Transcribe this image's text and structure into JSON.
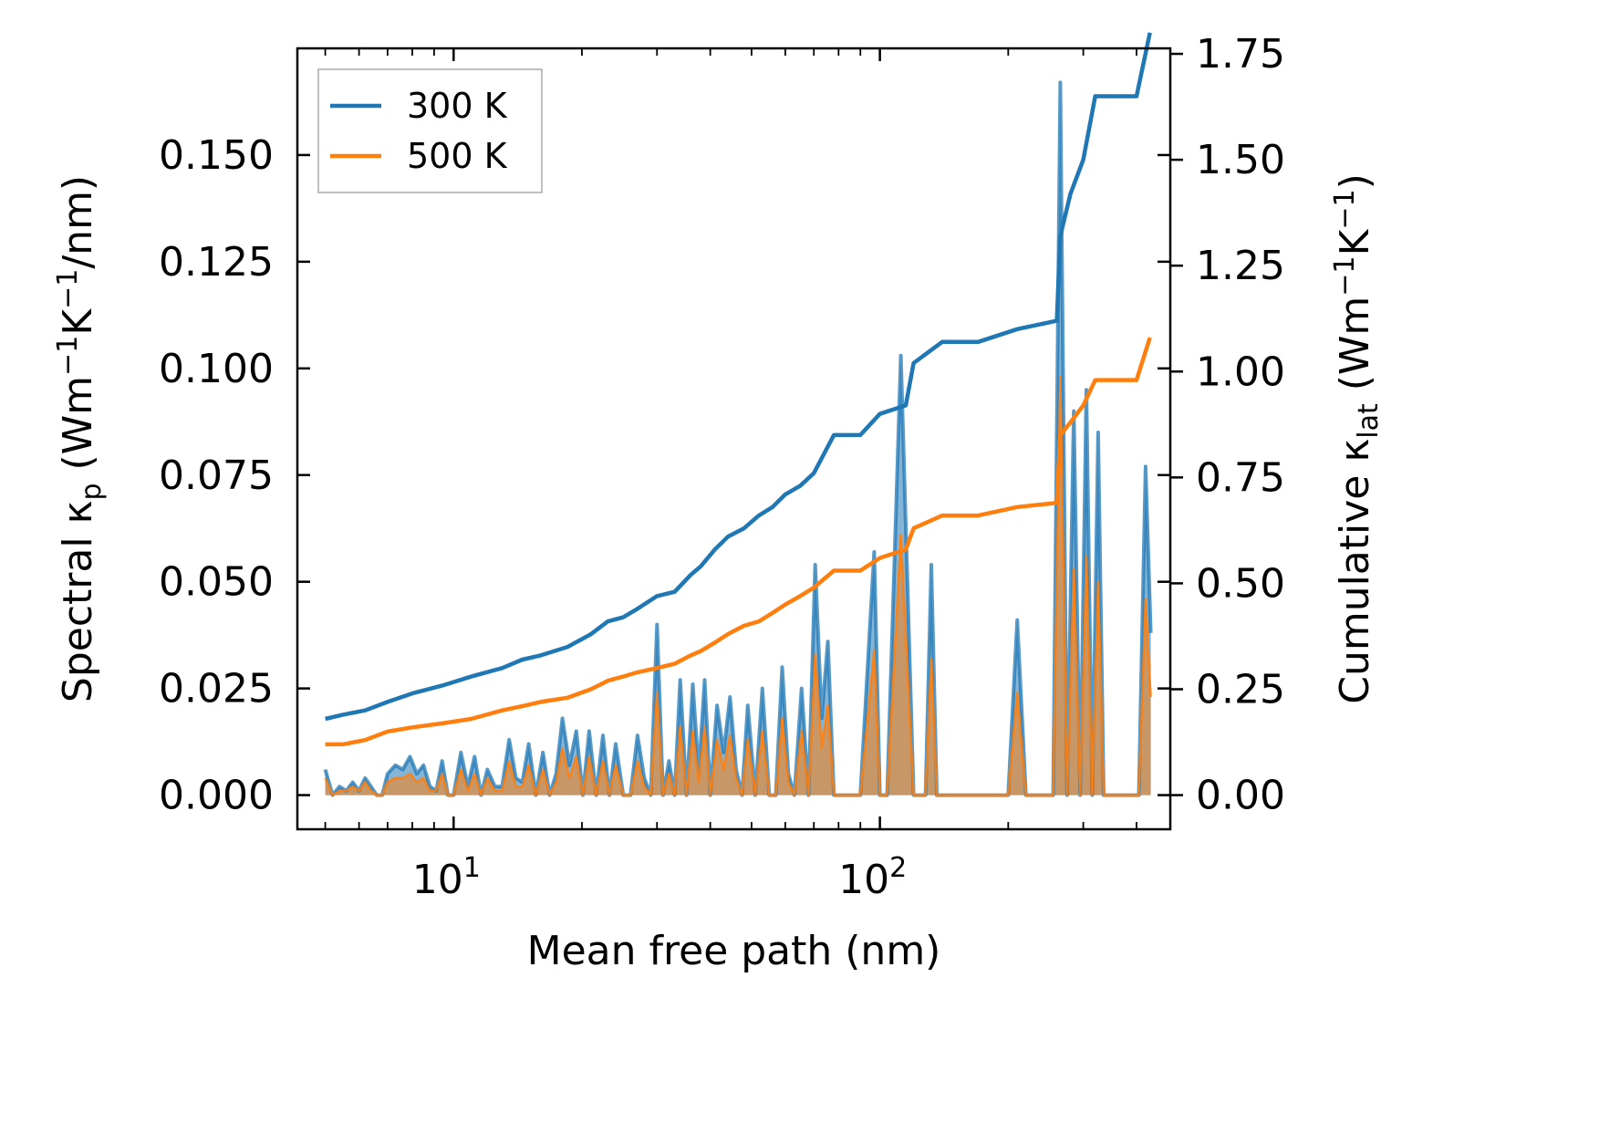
{
  "chart_data": {
    "type": "line",
    "xscale": "log",
    "xlabel": "Mean free path (nm)",
    "ylabel_left_parts": [
      "Spectral κ",
      "p",
      " (Wm",
      "−1",
      "K",
      "−1",
      "/nm)"
    ],
    "ylabel_right_parts": [
      "Cumulative κ",
      "lat",
      " (Wm",
      "−1",
      "K",
      "−1",
      ")"
    ],
    "xlim": [
      4.3,
      480
    ],
    "ylim_left": [
      -0.008,
      0.175
    ],
    "ylim_right": [
      -0.0806,
      1.763
    ],
    "x_ticks": [
      {
        "value": 10,
        "base": "10",
        "exp": "1"
      },
      {
        "value": 100,
        "base": "10",
        "exp": "2"
      }
    ],
    "y_left_ticks": [
      "0.000",
      "0.025",
      "0.050",
      "0.075",
      "0.100",
      "0.125",
      "0.150"
    ],
    "y_right_ticks": [
      "0.00",
      "0.25",
      "0.50",
      "0.75",
      "1.00",
      "1.25",
      "1.50",
      "1.75"
    ],
    "legend": [
      {
        "label": "300 K",
        "color": "#1f77b4"
      },
      {
        "label": "500 K",
        "color": "#ff7f0e"
      }
    ],
    "series": [
      {
        "name": "300 K cumulative",
        "axis": "right",
        "color": "#1f77b4",
        "x": [
          5,
          5.5,
          6.2,
          7,
          8,
          9.5,
          11,
          13,
          14.5,
          16,
          18.5,
          21,
          23,
          25,
          27,
          30,
          33,
          36,
          38,
          41,
          44,
          48,
          52,
          56,
          60,
          65,
          70,
          78,
          90,
          100,
          115,
          120,
          140,
          170,
          210,
          260,
          265,
          280,
          300,
          320,
          350,
          400,
          430
        ],
        "y": [
          0.18,
          0.19,
          0.2,
          0.22,
          0.24,
          0.26,
          0.28,
          0.3,
          0.32,
          0.33,
          0.35,
          0.38,
          0.41,
          0.42,
          0.44,
          0.47,
          0.48,
          0.52,
          0.54,
          0.58,
          0.61,
          0.63,
          0.66,
          0.68,
          0.71,
          0.73,
          0.76,
          0.85,
          0.85,
          0.9,
          0.92,
          1.02,
          1.07,
          1.07,
          1.1,
          1.12,
          1.32,
          1.42,
          1.5,
          1.65,
          1.65,
          1.65,
          1.8
        ]
      },
      {
        "name": "500 K cumulative",
        "axis": "right",
        "color": "#ff7f0e",
        "x": [
          5,
          5.5,
          6.2,
          7,
          8,
          9.5,
          11,
          13,
          14.5,
          16,
          18.5,
          21,
          23,
          25,
          27,
          30,
          33,
          36,
          38,
          41,
          44,
          48,
          52,
          56,
          60,
          65,
          70,
          78,
          90,
          100,
          115,
          120,
          140,
          170,
          210,
          260,
          265,
          280,
          300,
          320,
          350,
          400,
          430
        ],
        "y": [
          0.12,
          0.12,
          0.13,
          0.15,
          0.16,
          0.17,
          0.18,
          0.2,
          0.21,
          0.22,
          0.23,
          0.25,
          0.27,
          0.28,
          0.29,
          0.3,
          0.31,
          0.33,
          0.34,
          0.36,
          0.38,
          0.4,
          0.41,
          0.43,
          0.45,
          0.47,
          0.49,
          0.53,
          0.53,
          0.56,
          0.58,
          0.63,
          0.66,
          0.66,
          0.68,
          0.69,
          0.85,
          0.88,
          0.92,
          0.98,
          0.98,
          0.98,
          1.08
        ]
      },
      {
        "name": "300 K spectral",
        "axis": "left",
        "color": "#1f77b4",
        "x": [
          5,
          5.2,
          5.4,
          5.6,
          5.8,
          6.0,
          6.2,
          6.4,
          6.6,
          6.8,
          7.0,
          7.3,
          7.6,
          7.9,
          8.2,
          8.5,
          8.8,
          9.1,
          9.4,
          9.7,
          10.0,
          10.4,
          10.8,
          11.2,
          11.6,
          12.0,
          12.5,
          13.0,
          13.5,
          14.0,
          14.5,
          15.0,
          15.6,
          16.2,
          16.8,
          17.4,
          18.0,
          18.7,
          19.4,
          20.1,
          20.8,
          21.6,
          22.4,
          23.2,
          24.0,
          25.0,
          26.0,
          27.0,
          28.0,
          29.0,
          30.0,
          31.0,
          32.0,
          33.0,
          34.0,
          35.2,
          36.4,
          37.6,
          38.8,
          40.0,
          41.5,
          43.0,
          44.5,
          46.0,
          47.5,
          49.0,
          51.0,
          53.0,
          55.0,
          57.0,
          59.0,
          61.0,
          63.0,
          65.5,
          68.0,
          70.5,
          73.0,
          75.5,
          78.0,
          80.5,
          83.0,
          90.0,
          97.0,
          100.0,
          104.0,
          112.0,
          120.0,
          124.0,
          128.0,
          132.0,
          136.0,
          140.0,
          200.0,
          210.0,
          220.0,
          255.0,
          265.0,
          275.0,
          285.0,
          295.0,
          305.0,
          315.0,
          325.0,
          335.0,
          390.0,
          405.0,
          420.0,
          432.0
        ],
        "y": [
          0.006,
          0.0,
          0.002,
          0.001,
          0.003,
          0.001,
          0.004,
          0.002,
          0.0,
          0.0,
          0.005,
          0.007,
          0.006,
          0.009,
          0.005,
          0.007,
          0.002,
          0.001,
          0.008,
          0.0,
          0.0,
          0.01,
          0.002,
          0.009,
          0.0,
          0.006,
          0.002,
          0.002,
          0.013,
          0.004,
          0.003,
          0.012,
          0.0,
          0.01,
          0.0,
          0.005,
          0.018,
          0.007,
          0.015,
          0.0,
          0.015,
          0.0,
          0.014,
          0.0,
          0.012,
          0.0,
          0.0,
          0.014,
          0.004,
          0.0,
          0.04,
          0.0,
          0.008,
          0.0,
          0.027,
          0.0,
          0.026,
          0.005,
          0.027,
          0.0,
          0.021,
          0.01,
          0.023,
          0.006,
          0.0,
          0.021,
          0.0,
          0.025,
          0.0,
          0.0,
          0.03,
          0.005,
          0.0,
          0.025,
          0.0,
          0.054,
          0.018,
          0.036,
          0.0,
          0.0,
          0.0,
          0.0,
          0.057,
          0.0,
          0.0,
          0.103,
          0.0,
          0.0,
          0.0,
          0.054,
          0.0,
          0.0,
          0.0,
          0.041,
          0.0,
          0.0,
          0.167,
          0.0,
          0.09,
          0.0,
          0.095,
          0.0,
          0.085,
          0.0,
          0.0,
          0.0,
          0.077,
          0.038
        ]
      },
      {
        "name": "500 K spectral",
        "axis": "left",
        "color": "#ff7f0e",
        "x": [
          5,
          5.2,
          5.4,
          5.6,
          5.8,
          6.0,
          6.2,
          6.4,
          6.6,
          6.8,
          7.0,
          7.3,
          7.6,
          7.9,
          8.2,
          8.5,
          8.8,
          9.1,
          9.4,
          9.7,
          10.0,
          10.4,
          10.8,
          11.2,
          11.6,
          12.0,
          12.5,
          13.0,
          13.5,
          14.0,
          14.5,
          15.0,
          15.6,
          16.2,
          16.8,
          17.4,
          18.0,
          18.7,
          19.4,
          20.1,
          20.8,
          21.6,
          22.4,
          23.2,
          24.0,
          25.0,
          26.0,
          27.0,
          28.0,
          29.0,
          30.0,
          31.0,
          32.0,
          33.0,
          34.0,
          35.2,
          36.4,
          37.6,
          38.8,
          40.0,
          41.5,
          43.0,
          44.5,
          46.0,
          47.5,
          49.0,
          51.0,
          53.0,
          55.0,
          57.0,
          59.0,
          61.0,
          63.0,
          65.5,
          68.0,
          70.5,
          73.0,
          75.5,
          78.0,
          80.5,
          83.0,
          90.0,
          97.0,
          100.0,
          104.0,
          112.0,
          120.0,
          124.0,
          128.0,
          132.0,
          136.0,
          140.0,
          200.0,
          210.0,
          220.0,
          255.0,
          265.0,
          275.0,
          285.0,
          295.0,
          305.0,
          315.0,
          325.0,
          335.0,
          390.0,
          405.0,
          420.0,
          432.0
        ],
        "y": [
          0.004,
          0.0,
          0.001,
          0.001,
          0.002,
          0.001,
          0.003,
          0.001,
          0.0,
          0.0,
          0.003,
          0.004,
          0.004,
          0.005,
          0.003,
          0.004,
          0.001,
          0.001,
          0.005,
          0.0,
          0.0,
          0.006,
          0.001,
          0.005,
          0.0,
          0.004,
          0.001,
          0.001,
          0.008,
          0.002,
          0.002,
          0.007,
          0.0,
          0.006,
          0.0,
          0.003,
          0.011,
          0.004,
          0.009,
          0.0,
          0.009,
          0.0,
          0.008,
          0.0,
          0.007,
          0.0,
          0.0,
          0.008,
          0.002,
          0.0,
          0.024,
          0.0,
          0.005,
          0.0,
          0.016,
          0.0,
          0.015,
          0.003,
          0.016,
          0.0,
          0.013,
          0.006,
          0.014,
          0.004,
          0.0,
          0.013,
          0.0,
          0.015,
          0.0,
          0.0,
          0.018,
          0.003,
          0.0,
          0.015,
          0.0,
          0.033,
          0.011,
          0.021,
          0.0,
          0.0,
          0.0,
          0.0,
          0.034,
          0.0,
          0.0,
          0.061,
          0.0,
          0.0,
          0.0,
          0.032,
          0.0,
          0.0,
          0.0,
          0.024,
          0.0,
          0.0,
          0.098,
          0.0,
          0.053,
          0.0,
          0.056,
          0.0,
          0.05,
          0.0,
          0.0,
          0.0,
          0.046,
          0.023
        ]
      }
    ]
  }
}
